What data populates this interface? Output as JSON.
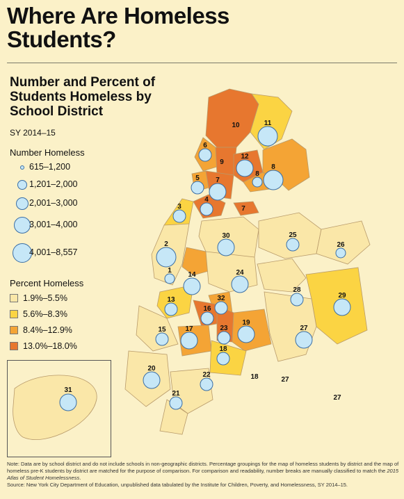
{
  "title": "Where Are Homeless Students?",
  "subtitle": "Number and Percent of Students Homeless by School District",
  "period": "SY 2014–15",
  "legend_number": {
    "heading": "Number Homeless",
    "items": [
      "615–1,200",
      "1,201–2,000",
      "2,001–3,000",
      "3,001–4,000",
      "4,001–8,557"
    ]
  },
  "legend_percent": {
    "heading": "Percent Homeless",
    "items": [
      {
        "label": "1.9%–5.5%",
        "color": "#fae7a8"
      },
      {
        "label": "5.6%–8.3%",
        "color": "#fbd443"
      },
      {
        "label": "8.4%–12.9%",
        "color": "#f4a435"
      },
      {
        "label": "13.0%–18.0%",
        "color": "#e7772f"
      }
    ]
  },
  "colors": {
    "background": "#fbf1c8",
    "bubble_fill": "#c6e7f7",
    "bubble_stroke": "#3a6ea5",
    "water": "#fbf1c8"
  },
  "districts": [
    {
      "label": "10",
      "number_class": 5,
      "percent_class": 4
    },
    {
      "label": "11",
      "number_class": 4,
      "percent_class": 2
    },
    {
      "label": "6",
      "number_class": 2,
      "percent_class": 3
    },
    {
      "label": "9",
      "number_class": 5,
      "percent_class": 4
    },
    {
      "label": "12",
      "number_class": 3,
      "percent_class": 4
    },
    {
      "label": "8",
      "number_class": 1,
      "percent_class": 3
    },
    {
      "label": "8",
      "number_class": 4,
      "percent_class": 3
    },
    {
      "label": "5",
      "number_class": 2,
      "percent_class": 3
    },
    {
      "label": "7",
      "number_class": 3,
      "percent_class": 4
    },
    {
      "label": "4",
      "number_class": 2,
      "percent_class": 4
    },
    {
      "label": "7",
      "number_class": 0,
      "percent_class": 4
    },
    {
      "label": "3",
      "number_class": 2,
      "percent_class": 2
    },
    {
      "label": "2",
      "number_class": 4,
      "percent_class": 1
    },
    {
      "label": "30",
      "number_class": 3,
      "percent_class": 1
    },
    {
      "label": "25",
      "number_class": 2,
      "percent_class": 1
    },
    {
      "label": "26",
      "number_class": 1,
      "percent_class": 1
    },
    {
      "label": "1",
      "number_class": 1,
      "percent_class": 3
    },
    {
      "label": "14",
      "number_class": 3,
      "percent_class": 3
    },
    {
      "label": "24",
      "number_class": 3,
      "percent_class": 1
    },
    {
      "label": "28",
      "number_class": 2,
      "percent_class": 1
    },
    {
      "label": "29",
      "number_class": 3,
      "percent_class": 2
    },
    {
      "label": "13",
      "number_class": 2,
      "percent_class": 2
    },
    {
      "label": "32",
      "number_class": 2,
      "percent_class": 3
    },
    {
      "label": "16",
      "number_class": 2,
      "percent_class": 4
    },
    {
      "label": "23",
      "number_class": 2,
      "percent_class": 4
    },
    {
      "label": "19",
      "number_class": 3,
      "percent_class": 3
    },
    {
      "label": "15",
      "number_class": 2,
      "percent_class": 1
    },
    {
      "label": "17",
      "number_class": 3,
      "percent_class": 3
    },
    {
      "label": "27",
      "number_class": 3,
      "percent_class": 1
    },
    {
      "label": "18",
      "number_class": 2,
      "percent_class": 2
    },
    {
      "label": "20",
      "number_class": 3,
      "percent_class": 1
    },
    {
      "label": "22",
      "number_class": 2,
      "percent_class": 1
    },
    {
      "label": "21",
      "number_class": 2,
      "percent_class": 1
    },
    {
      "label": "18",
      "number_class": 0,
      "percent_class": 2
    },
    {
      "label": "27",
      "number_class": 0,
      "percent_class": 2
    },
    {
      "label": "27",
      "number_class": 0,
      "percent_class": 1
    },
    {
      "label": "31",
      "number_class": 3,
      "percent_class": 1
    }
  ],
  "note_text": "Note: Data are by school district and do not include schools in non-geographic districts. Percentage groupings for the map of homeless students by district and the map of homeless pre-K students by district are matched for the purpose of comparison. For comparison and readability, number breaks are manually classified to match the",
  "note_italic": "2015 Atlas of Student Homelessness",
  "note_end": ".",
  "source": "Source: New York City Department of Education, unpublished data tabulated by the Institute for Children, Poverty, and Homelessness, SY 2014–15."
}
